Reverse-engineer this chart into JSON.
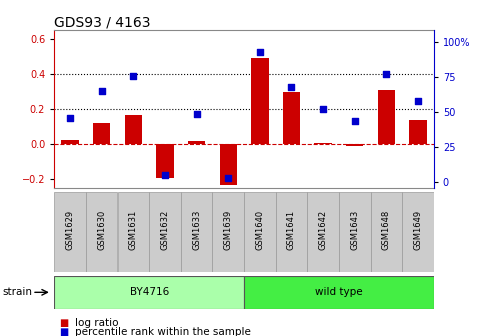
{
  "title": "GDS93 / 4163",
  "samples": [
    "GSM1629",
    "GSM1630",
    "GSM1631",
    "GSM1632",
    "GSM1633",
    "GSM1639",
    "GSM1640",
    "GSM1641",
    "GSM1642",
    "GSM1643",
    "GSM1648",
    "GSM1649"
  ],
  "log_ratio": [
    0.025,
    0.12,
    0.165,
    -0.19,
    0.02,
    -0.23,
    0.49,
    0.3,
    0.01,
    -0.01,
    0.31,
    0.14
  ],
  "percentile_rank": [
    46,
    65,
    76,
    5,
    49,
    3,
    93,
    68,
    52,
    44,
    77,
    58
  ],
  "ylim_left": [
    -0.25,
    0.65
  ],
  "ylim_right": [
    -4.17,
    108.3
  ],
  "yticks_left": [
    -0.2,
    0.0,
    0.2,
    0.4,
    0.6
  ],
  "yticks_right": [
    0,
    25,
    50,
    75,
    100
  ],
  "ytick_labels_right": [
    "0",
    "25",
    "50",
    "75",
    "100%"
  ],
  "hlines": [
    0.2,
    0.4
  ],
  "bar_color": "#cc0000",
  "dot_color": "#0000cc",
  "strain_groups": [
    {
      "label": "BY4716",
      "start": 0,
      "end": 6,
      "color": "#aaffaa"
    },
    {
      "label": "wild type",
      "start": 6,
      "end": 12,
      "color": "#44ee44"
    }
  ],
  "strain_label": "strain",
  "legend_bar_label": "log ratio",
  "legend_dot_label": "percentile rank within the sample",
  "background_color": "#ffffff",
  "tick_label_bg": "#cccccc",
  "grid_color": "#000000",
  "zero_line_color": "#cc0000",
  "title_fontsize": 10,
  "axis_fontsize": 7,
  "legend_fontsize": 7.5
}
